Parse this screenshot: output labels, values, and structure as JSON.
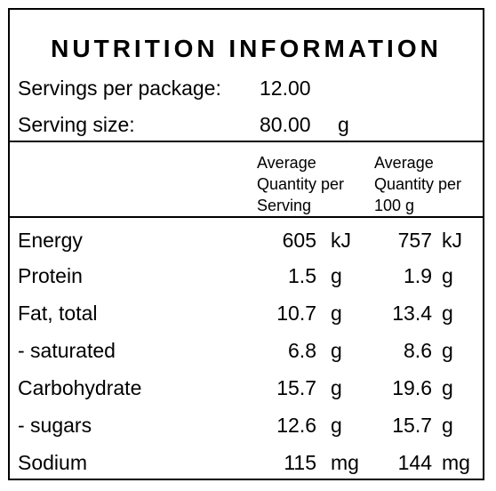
{
  "title": "NUTRITION INFORMATION",
  "servings_per_package": {
    "label": "Servings per package:",
    "value": "12.00"
  },
  "serving_size": {
    "label": "Serving size:",
    "value": "80.00",
    "unit": "g"
  },
  "column_headers": {
    "per_serving": "Average\nQuantity per\nServing",
    "per_100g": "Average\nQuantity per\n100 g"
  },
  "rows": [
    {
      "name": "Energy",
      "serving": "605",
      "serving_unit": "kJ",
      "per100": "757",
      "per100_unit": "kJ"
    },
    {
      "name": "Protein",
      "serving": "1.5",
      "serving_unit": "g",
      "per100": "1.9",
      "per100_unit": "g"
    },
    {
      "name": "Fat, total",
      "serving": "10.7",
      "serving_unit": "g",
      "per100": "13.4",
      "per100_unit": "g"
    },
    {
      "name": "- saturated",
      "serving": "6.8",
      "serving_unit": "g",
      "per100": "8.6",
      "per100_unit": "g"
    },
    {
      "name": "Carbohydrate",
      "serving": "15.7",
      "serving_unit": "g",
      "per100": "19.6",
      "per100_unit": "g"
    },
    {
      "name": "- sugars",
      "serving": "12.6",
      "serving_unit": "g",
      "per100": "15.7",
      "per100_unit": "g"
    },
    {
      "name": "Sodium",
      "serving": "115",
      "serving_unit": "mg",
      "per100": "144",
      "per100_unit": "mg"
    }
  ]
}
